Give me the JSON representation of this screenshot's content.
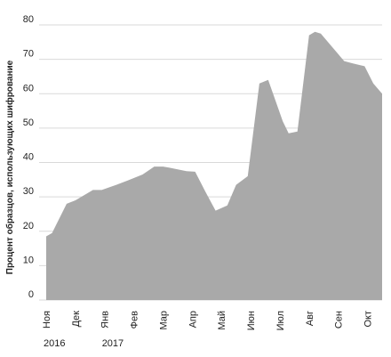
{
  "chart_data": {
    "type": "area",
    "title": "",
    "xlabel": "",
    "ylabel": "Процент образцов, использующих шифрование",
    "categories": [
      "Ноя",
      "Дек",
      "Янв",
      "Фев",
      "Мар",
      "Апр",
      "Май",
      "Июн",
      "Июл",
      "Авг",
      "Сен",
      "Окт"
    ],
    "year_labels": [
      {
        "category_index": 0,
        "text": "2016"
      },
      {
        "category_index": 2,
        "text": "2017"
      }
    ],
    "x": [
      0,
      0.2,
      0.7,
      1.0,
      1.6,
      1.9,
      2.4,
      2.8,
      3.3,
      3.7,
      4.0,
      4.2,
      4.8,
      5.1,
      5.45,
      5.8,
      6.2,
      6.5,
      6.9,
      7.3,
      7.6,
      8.1,
      8.3,
      8.6,
      9.0,
      9.2,
      9.4,
      9.8,
      10.2,
      10.5,
      10.9,
      11.2,
      11.5
    ],
    "values": [
      18.5,
      19.5,
      28,
      29,
      32,
      32,
      33.5,
      34.8,
      36.5,
      38.8,
      38.8,
      38.5,
      37.5,
      37.3,
      31.5,
      26,
      27.5,
      33.5,
      36,
      63,
      64,
      52,
      48.5,
      49,
      77,
      78,
      77.5,
      73.5,
      69.5,
      68.8,
      68,
      63,
      60
    ],
    "ylim": [
      0,
      80
    ],
    "yticks": [
      0,
      10,
      20,
      30,
      40,
      50,
      60,
      70,
      80
    ],
    "grid": true,
    "colors": {
      "area": "#a9a9a9",
      "grid": "#d9d9d9",
      "text": "#222222"
    }
  }
}
